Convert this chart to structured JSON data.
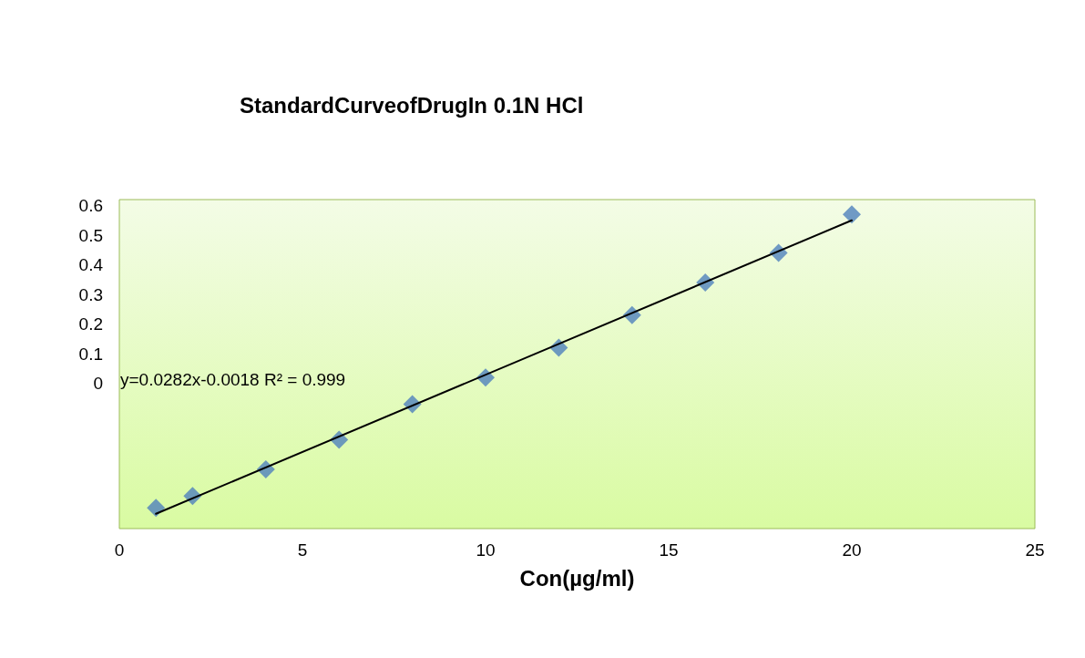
{
  "chart_data": {
    "type": "scatter",
    "title": "StandardCurveofDrugIn 0.1N HCl",
    "xlabel": "Con(µg/ml)",
    "x": [
      1,
      2,
      4,
      6,
      8,
      10,
      12,
      14,
      16,
      18,
      20
    ],
    "series": [
      {
        "color": "#4f81bd",
        "values": [
          -0.42,
          -0.38,
          -0.29,
          -0.19,
          -0.07,
          0.02,
          0.12,
          0.23,
          0.34,
          0.44,
          0.57
        ]
      },
      {
        "type": "line",
        "color": "#000000",
        "x": [
          1,
          20
        ],
        "values": [
          -0.44,
          0.55
        ],
        "marker": "none"
      }
    ],
    "xlim": [
      0,
      25
    ],
    "xticks": [
      0,
      5,
      10,
      15,
      20,
      25
    ],
    "ylim": [
      -0.49,
      0.62
    ],
    "yticks": [
      0,
      0.1,
      0.2,
      0.3,
      0.4,
      0.5,
      0.6
    ],
    "grid": false,
    "marker": "diamond",
    "annotations": [
      "y=0.0282x-0.0018 R² = 0.999"
    ]
  }
}
